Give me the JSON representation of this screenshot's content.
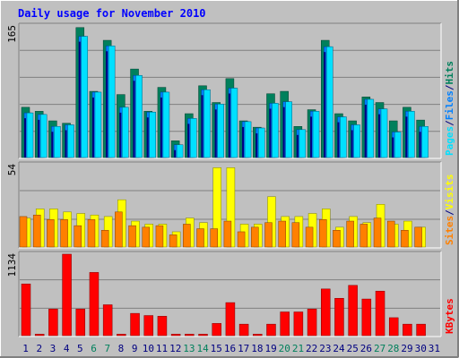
{
  "title": "Daily usage for November 2010",
  "colors": {
    "frame": "#c0c0c0",
    "plot_bg": "#c0c0c0",
    "gridline": "#808080",
    "title_text": "#0000ff",
    "hits": "#00805c",
    "files": "#0080ff",
    "pages": "#00e0ff",
    "visits": "#ffff00",
    "sites": "#ff8000",
    "kbytes": "#ff0000",
    "dark_inner_blue": "#000080",
    "weekend_label": "#00805c",
    "weekday_label": "#000080"
  },
  "chart_data": [
    {
      "type": "bar",
      "title": "Daily usage for November 2010",
      "ylim": [
        0,
        165
      ],
      "ytick_label": "165",
      "right_legend": [
        {
          "text": "Pages",
          "color_key": "pages"
        },
        {
          "text": "/",
          "color_key": "dark"
        },
        {
          "text": "Files",
          "color_key": "files"
        },
        {
          "text": "/",
          "color_key": "dark"
        },
        {
          "text": "Hits",
          "color_key": "hits"
        }
      ],
      "categories": [
        "1",
        "2",
        "3",
        "4",
        "5",
        "6",
        "7",
        "8",
        "9",
        "10",
        "11",
        "12",
        "13",
        "14",
        "15",
        "16",
        "17",
        "18",
        "19",
        "20",
        "21",
        "22",
        "23",
        "24",
        "25",
        "26",
        "27",
        "28",
        "29",
        "30",
        "31"
      ],
      "series": [
        {
          "name": "Hits",
          "values": [
            63,
            58,
            46,
            43,
            163,
            83,
            147,
            79,
            111,
            58,
            88,
            21,
            55,
            90,
            69,
            99,
            46,
            38,
            80,
            83,
            39,
            60,
            147,
            55,
            46,
            76,
            69,
            46,
            63,
            47,
            0
          ]
        },
        {
          "name": "Files",
          "values": [
            56,
            54,
            39,
            41,
            152,
            82,
            140,
            63,
            103,
            57,
            82,
            16,
            49,
            85,
            67,
            87,
            45,
            37,
            68,
            70,
            35,
            58,
            139,
            51,
            41,
            73,
            61,
            32,
            58,
            39,
            0
          ]
        },
        {
          "name": "Pages",
          "values": [
            9,
            6,
            5,
            7,
            17,
            12,
            10,
            7,
            9,
            9,
            10,
            5,
            6,
            9,
            8,
            7,
            7,
            6,
            9,
            11,
            5,
            8,
            15,
            8,
            7,
            10,
            9,
            6,
            8,
            6,
            0
          ]
        }
      ]
    },
    {
      "type": "bar",
      "ylim": [
        0,
        54
      ],
      "ytick_label": "54",
      "right_legend": [
        {
          "text": "Sites",
          "color_key": "sites"
        },
        {
          "text": "/",
          "color_key": "dark"
        },
        {
          "text": "Visits",
          "color_key": "visits"
        }
      ],
      "categories": [
        "1",
        "2",
        "3",
        "4",
        "5",
        "6",
        "7",
        "8",
        "9",
        "10",
        "11",
        "12",
        "13",
        "14",
        "15",
        "16",
        "17",
        "18",
        "19",
        "20",
        "21",
        "22",
        "23",
        "24",
        "25",
        "26",
        "27",
        "28",
        "29",
        "30",
        "31"
      ],
      "series": [
        {
          "name": "Visits",
          "values": [
            19,
            25,
            25,
            23,
            22,
            21,
            20,
            31,
            17,
            15,
            15,
            10,
            19,
            16,
            52,
            52,
            15,
            15,
            33,
            20,
            20,
            22,
            25,
            13,
            20,
            16,
            28,
            15,
            17,
            13,
            0
          ]
        },
        {
          "name": "Sites",
          "values": [
            20,
            21,
            18,
            18,
            14,
            18,
            11,
            23,
            14,
            13,
            14,
            8,
            15,
            12,
            12,
            17,
            10,
            13,
            16,
            17,
            16,
            13,
            18,
            11,
            17,
            15,
            19,
            17,
            11,
            13,
            0
          ]
        }
      ]
    },
    {
      "type": "bar",
      "ylim": [
        0,
        1134
      ],
      "ytick_label": "1134",
      "right_legend": [
        {
          "text": "KBytes",
          "color_key": "kbytes"
        }
      ],
      "categories": [
        "1",
        "2",
        "3",
        "4",
        "5",
        "6",
        "7",
        "8",
        "9",
        "10",
        "11",
        "12",
        "13",
        "14",
        "15",
        "16",
        "17",
        "18",
        "19",
        "20",
        "21",
        "22",
        "23",
        "24",
        "25",
        "26",
        "27",
        "28",
        "29",
        "30",
        "31"
      ],
      "series": [
        {
          "name": "KBytes",
          "values": [
            720,
            20,
            370,
            1134,
            370,
            880,
            430,
            20,
            310,
            280,
            270,
            20,
            20,
            20,
            170,
            460,
            160,
            20,
            160,
            330,
            330,
            370,
            650,
            520,
            700,
            510,
            620,
            250,
            160,
            160,
            0
          ]
        }
      ]
    }
  ],
  "x_axis": {
    "labels": [
      "1",
      "2",
      "3",
      "4",
      "5",
      "6",
      "7",
      "8",
      "9",
      "10",
      "11",
      "12",
      "13",
      "14",
      "15",
      "16",
      "17",
      "18",
      "19",
      "20",
      "21",
      "22",
      "23",
      "24",
      "25",
      "26",
      "27",
      "28",
      "29",
      "30",
      "31"
    ],
    "weekend_days": [
      "6",
      "7",
      "13",
      "14",
      "20",
      "21",
      "27",
      "28"
    ]
  }
}
